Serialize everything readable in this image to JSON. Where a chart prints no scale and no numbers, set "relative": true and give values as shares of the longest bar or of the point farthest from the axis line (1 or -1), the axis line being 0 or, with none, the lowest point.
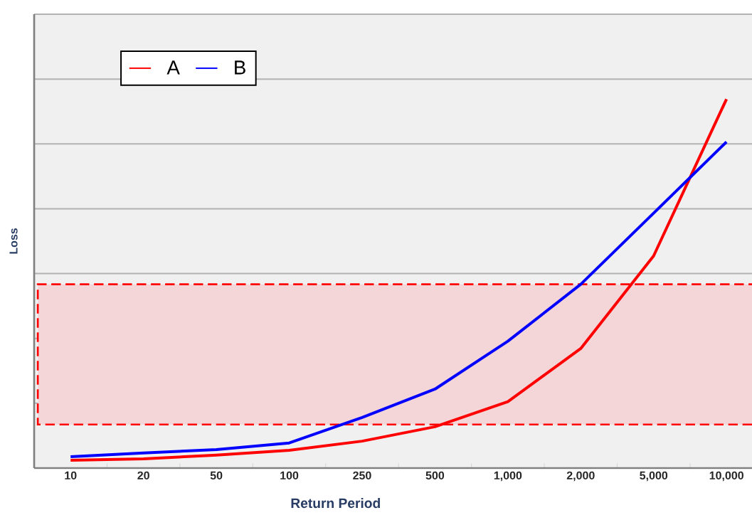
{
  "chart_data": {
    "type": "line",
    "relative": true,
    "xlabel": "Return Period",
    "ylabel": "Loss",
    "categories": [
      "10",
      "20",
      "50",
      "100",
      "250",
      "500",
      "1,000",
      "2,000",
      "5,000",
      "10,000"
    ],
    "series": [
      {
        "name": "A",
        "color": "#ff0000",
        "values": [
          0.021,
          0.025,
          0.035,
          0.048,
          0.073,
          0.112,
          0.18,
          0.324,
          0.575,
          1
        ]
      },
      {
        "name": "B",
        "color": "#0000ff",
        "values": [
          0.031,
          0.041,
          0.05,
          0.068,
          0.137,
          0.214,
          0.344,
          0.498,
          0.691,
          0.884
        ]
      }
    ],
    "bands": [
      {
        "axis": "y",
        "from": 0.118,
        "to": 0.498,
        "color": "#f4d6d8"
      }
    ],
    "grid": "y",
    "legend": "top left",
    "line_style": "solid",
    "marker": "none"
  }
}
